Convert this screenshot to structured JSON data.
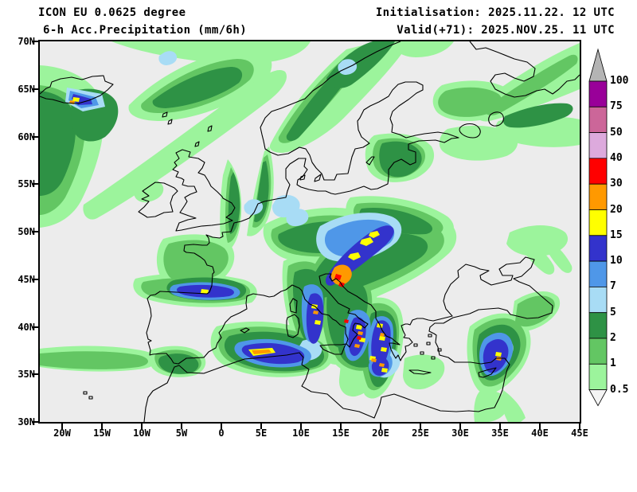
{
  "title": {
    "line1": "ICON EU 0.0625 degree",
    "line2": "6-h Acc.Precipitation (mm/6h)"
  },
  "run_info": {
    "initialisation": "Initialisation: 2025.11.22. 12 UTC",
    "valid": "Valid(+71): 2025.NOV.25. 11 UTC"
  },
  "axes": {
    "lat_ticks": [
      "70N",
      "65N",
      "60N",
      "55N",
      "50N",
      "45N",
      "40N",
      "35N",
      "30N"
    ],
    "lon_ticks": [
      "20W",
      "15W",
      "10W",
      "5W",
      "0",
      "5E",
      "10E",
      "15E",
      "20E",
      "25E",
      "30E",
      "35E",
      "40E",
      "45E"
    ]
  },
  "legend": {
    "levels": [
      "100",
      "75",
      "50",
      "40",
      "30",
      "20",
      "15",
      "10",
      "7",
      "5",
      "2",
      "1",
      "0.5"
    ],
    "segment_colors": [
      "#990099",
      "#cc6699",
      "#ddaadd",
      "#ff0000",
      "#ff9900",
      "#ffff00",
      "#3333cc",
      "#4f97e8",
      "#a8dcf5",
      "#2e9245",
      "#63c663",
      "#9cf49c"
    ],
    "above_max_color": "#b4b4b4",
    "below_min_color": "#f4f4f4"
  },
  "map_colors": {
    "background": "#ececec",
    "coastline": "#000000"
  }
}
